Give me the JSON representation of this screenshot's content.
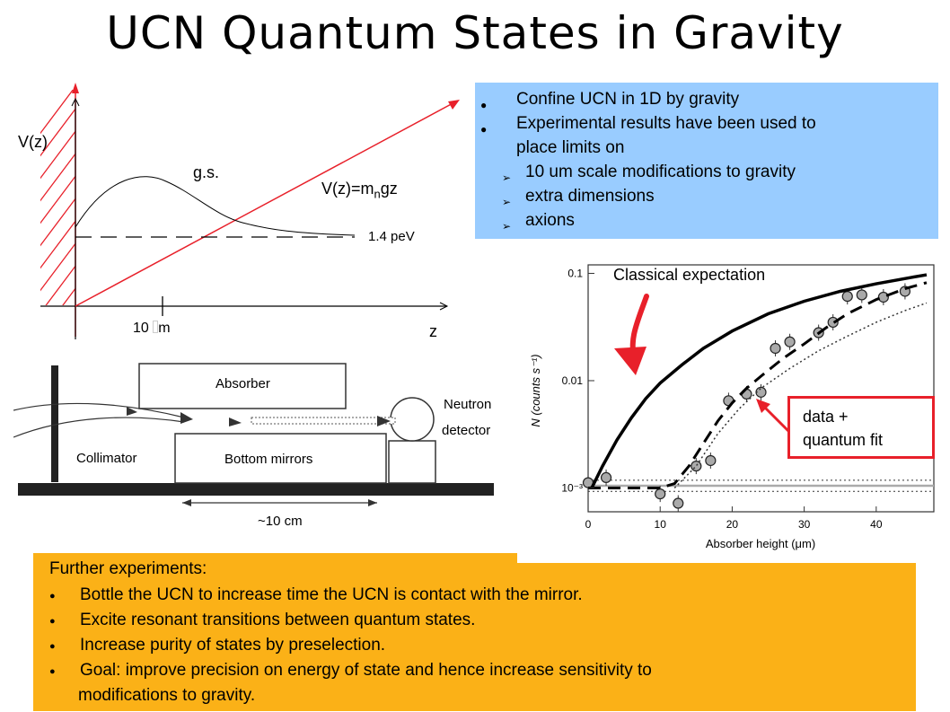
{
  "title": "UCN Quantum States in Gravity",
  "potential_plot": {
    "y_axis": "V(z)",
    "x_axis": "z",
    "ground_state": "g.s.",
    "potential_label_main": "V(z)=m",
    "potential_label_sub": "n",
    "potential_label_tail": "gz",
    "energy_label": "1.4 peV",
    "scale_label_prefix": "10",
    "scale_label_missing": "\u0000",
    "scale_label_unit": "m"
  },
  "apparatus": {
    "absorber": "Absorber",
    "neutron_detector_1": "Neutron",
    "neutron_detector_2": "detector",
    "collimator": "Collimator",
    "bottom_mirrors": "Bottom mirrors",
    "scale": "~10 cm"
  },
  "bullets": {
    "items": [
      {
        "level": 1,
        "text": "Confine UCN in 1D by gravity"
      },
      {
        "level": 1,
        "text": "Experimental results have been used to"
      },
      {
        "level": 0,
        "text": "place limits on"
      },
      {
        "level": 2,
        "text": "10 um scale modifications to gravity"
      },
      {
        "level": 2,
        "text": "extra dimensions"
      },
      {
        "level": 2,
        "text": "axions"
      }
    ],
    "bullet1": "●",
    "bullet2": "➢"
  },
  "chart_annotations": {
    "classical": "Classical expectation",
    "data_fit_1": "data +",
    "data_fit_2": "quantum fit"
  },
  "chart_data": {
    "type": "scatter",
    "xlabel": "Absorber height (μm)",
    "ylabel": "N (counts s⁻¹)",
    "x_ticks": [
      "0",
      "10",
      "20",
      "30",
      "40"
    ],
    "y_ticks": [
      "10⁻³",
      "0.01",
      "0.1"
    ],
    "xlim": [
      0,
      48
    ],
    "ylim_log": [
      0.0006,
      0.12
    ],
    "series": [
      {
        "style": "data",
        "x": [
          0,
          2.5,
          10,
          12.5,
          15,
          17,
          19.5,
          22,
          24,
          26,
          28,
          32,
          34,
          36,
          38,
          41,
          44
        ],
        "y": [
          0.00112,
          0.00125,
          0.00088,
          0.00072,
          0.0016,
          0.0018,
          0.0065,
          0.0075,
          0.0078,
          0.02,
          0.023,
          0.028,
          0.035,
          0.061,
          0.063,
          0.06,
          0.068
        ]
      },
      {
        "style": "classical",
        "x": [
          0.5,
          2,
          4,
          6,
          8,
          10,
          13,
          16,
          20,
          25,
          30,
          35,
          40,
          45,
          47
        ],
        "y": [
          0.001,
          0.0016,
          0.0028,
          0.0045,
          0.0068,
          0.0095,
          0.014,
          0.02,
          0.029,
          0.042,
          0.055,
          0.068,
          0.08,
          0.092,
          0.097
        ]
      },
      {
        "style": "quantum",
        "x": [
          0,
          10,
          12,
          14,
          16,
          18,
          20,
          22,
          24,
          27,
          30,
          33,
          36,
          40,
          44,
          47
        ],
        "y": [
          0.001,
          0.001,
          0.0011,
          0.0016,
          0.0026,
          0.0042,
          0.0062,
          0.0085,
          0.011,
          0.016,
          0.022,
          0.031,
          0.042,
          0.057,
          0.072,
          0.082
        ]
      },
      {
        "style": "dotted",
        "x": [
          12,
          15,
          18,
          21,
          24,
          28,
          32,
          36,
          40,
          44,
          47
        ],
        "y": [
          0.001,
          0.0016,
          0.0032,
          0.0055,
          0.0085,
          0.013,
          0.019,
          0.026,
          0.035,
          0.045,
          0.053
        ]
      }
    ],
    "baselines": [
      0.00093,
      0.00105,
      0.00118
    ]
  },
  "further": {
    "heading": "Further experiments:",
    "bullet": "●",
    "items": [
      "Bottle the UCN to increase time the UCN is contact with the mirror.",
      "Excite resonant transitions between quantum states.",
      "Increase purity of states by preselection.",
      "Goal:  improve precision on energy of state and hence increase sensitivity to"
    ],
    "continuation": "modifications to gravity."
  }
}
